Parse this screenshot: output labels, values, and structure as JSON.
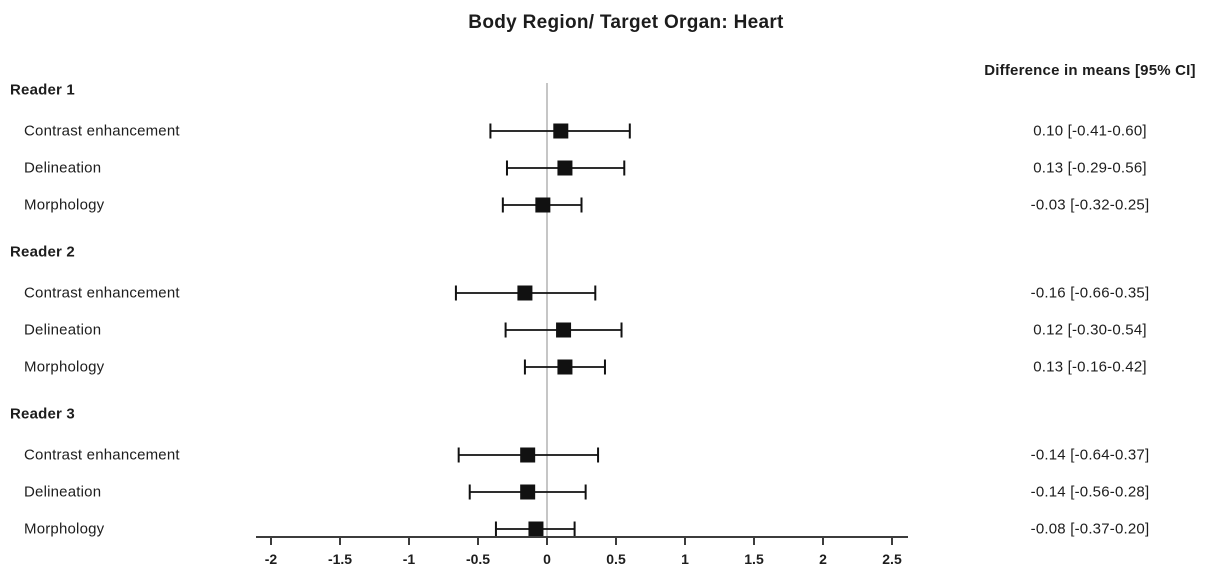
{
  "title": "Body Region/ Target Organ: Heart",
  "column_header": "Difference in means [95% CI]",
  "chart_data": {
    "type": "forest",
    "title": "Body Region/ Target Organ: Heart",
    "value_column_header": "Difference in means [95% CI]",
    "xlim": [
      -2.35,
      2.62
    ],
    "x_ticks": [
      {
        "value": -2,
        "label": "-2"
      },
      {
        "value": -1.5,
        "label": "-1.5"
      },
      {
        "value": -1,
        "label": "-1"
      },
      {
        "value": -0.5,
        "label": "-0.5"
      },
      {
        "value": 0,
        "label": "0"
      },
      {
        "value": 0.5,
        "label": "0.5"
      },
      {
        "value": 1,
        "label": "1"
      },
      {
        "value": 1.5,
        "label": "1.5"
      },
      {
        "value": 2,
        "label": "2"
      },
      {
        "value": 2.5,
        "label": "2.5"
      }
    ],
    "zero_reference": 0,
    "marker_color": "#111111",
    "zero_line_color": "#b4b4b4",
    "groups": [
      {
        "label": "Reader 1",
        "rows": [
          {
            "label": "Contrast enhancement",
            "mean": 0.1,
            "ci_low": -0.41,
            "ci_high": 0.6,
            "value_text": "0.10 [-0.41-0.60]"
          },
          {
            "label": "Delineation",
            "mean": 0.13,
            "ci_low": -0.29,
            "ci_high": 0.56,
            "value_text": "0.13 [-0.29-0.56]"
          },
          {
            "label": "Morphology",
            "mean": -0.03,
            "ci_low": -0.32,
            "ci_high": 0.25,
            "value_text": "-0.03 [-0.32-0.25]"
          }
        ]
      },
      {
        "label": "Reader 2",
        "rows": [
          {
            "label": "Contrast enhancement",
            "mean": -0.16,
            "ci_low": -0.66,
            "ci_high": 0.35,
            "value_text": "-0.16 [-0.66-0.35]"
          },
          {
            "label": "Delineation",
            "mean": 0.12,
            "ci_low": -0.3,
            "ci_high": 0.54,
            "value_text": "0.12 [-0.30-0.54]"
          },
          {
            "label": "Morphology",
            "mean": 0.13,
            "ci_low": -0.16,
            "ci_high": 0.42,
            "value_text": "0.13 [-0.16-0.42]"
          }
        ]
      },
      {
        "label": "Reader 3",
        "rows": [
          {
            "label": "Contrast enhancement",
            "mean": -0.14,
            "ci_low": -0.64,
            "ci_high": 0.37,
            "value_text": "-0.14 [-0.64-0.37]"
          },
          {
            "label": "Delineation",
            "mean": -0.14,
            "ci_low": -0.56,
            "ci_high": 0.28,
            "value_text": "-0.14 [-0.56-0.28]"
          },
          {
            "label": "Morphology",
            "mean": -0.08,
            "ci_low": -0.37,
            "ci_high": 0.2,
            "value_text": "-0.08 [-0.37-0.20]"
          }
        ]
      }
    ]
  }
}
